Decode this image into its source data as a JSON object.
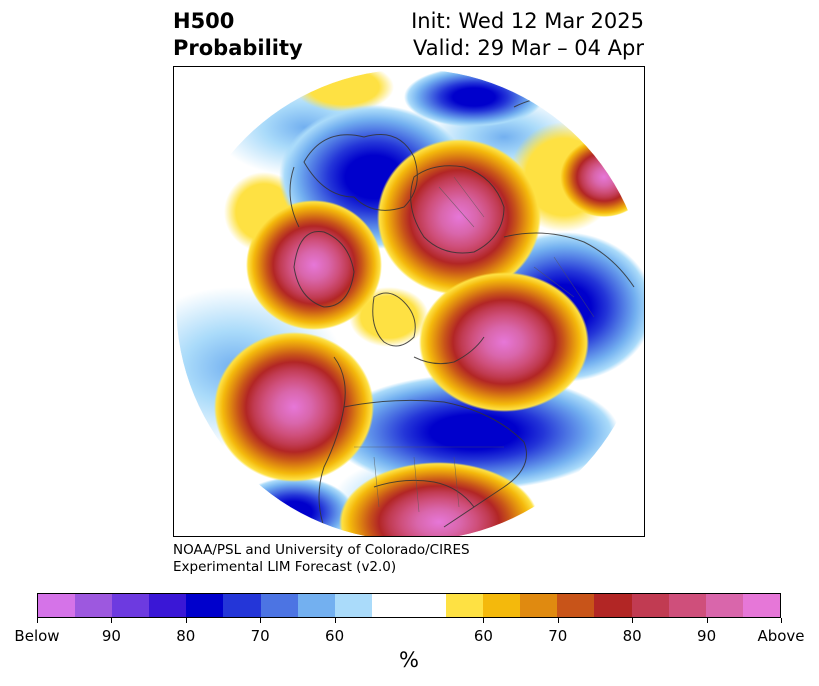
{
  "header": {
    "title_line1": "H500",
    "title_line2": "Probability",
    "init": "Init: Wed 12 Mar 2025",
    "valid": "Valid: 29 Mar – 04 Apr"
  },
  "credit": {
    "line1": "NOAA/PSL and University of Colorado/CIRES",
    "line2": "Experimental LIM Forecast (v2.0)"
  },
  "colorbar": {
    "colors": [
      "#d573e8",
      "#9d58df",
      "#6d3ae0",
      "#3a17d6",
      "#0000cc",
      "#2436d8",
      "#4c74e3",
      "#73b0f0",
      "#aadbfa",
      "#ffffff",
      "#ffffff",
      "#fee143",
      "#f4b90c",
      "#e08a10",
      "#c85419",
      "#b22625",
      "#c13b52",
      "#cf4f7b",
      "#d966ab",
      "#e677d8"
    ],
    "tick_labels": [
      "Below",
      "90",
      "80",
      "70",
      "60",
      "60",
      "70",
      "80",
      "90",
      "Above"
    ],
    "unit": "%"
  },
  "map": {
    "projection": "north-polar-stereographic",
    "features": [
      "coastlines",
      "country-borders",
      "state-boundaries"
    ]
  }
}
